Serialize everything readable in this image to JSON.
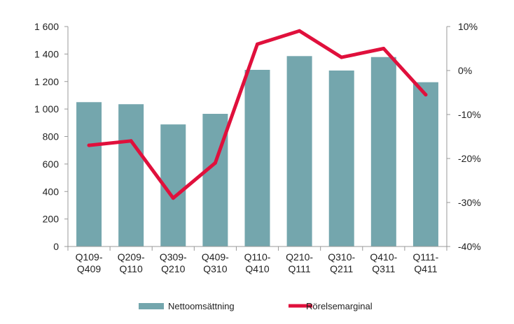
{
  "chart_data": {
    "type": "bar+line",
    "categories": [
      [
        "Q109-",
        "Q409"
      ],
      [
        "Q209-",
        "Q110"
      ],
      [
        "Q309-",
        "Q210"
      ],
      [
        "Q409-",
        "Q310"
      ],
      [
        "Q110-",
        "Q410"
      ],
      [
        "Q210-",
        "Q111"
      ],
      [
        "Q310-",
        "Q211"
      ],
      [
        "Q410-",
        "Q311"
      ],
      [
        "Q111-",
        "Q411"
      ]
    ],
    "series": [
      {
        "name": "Nettoomsättning",
        "type": "bar",
        "axis": "left",
        "color": "#74a6ad",
        "values": [
          1050,
          1035,
          888,
          965,
          1285,
          1385,
          1280,
          1378,
          1195
        ]
      },
      {
        "name": "Rörelsemarginal",
        "type": "line",
        "axis": "right",
        "color": "#e0103c",
        "values": [
          -17,
          -16,
          -29,
          -21,
          6,
          9,
          3,
          5,
          -5.5
        ]
      }
    ],
    "y_left": {
      "ylim": [
        0,
        1600
      ],
      "ticks": [
        0,
        200,
        400,
        600,
        800,
        1000,
        1200,
        1400,
        1600
      ],
      "tick_labels": [
        "0",
        "200",
        "400",
        "600",
        "800",
        "1 000",
        "1 200",
        "1 400",
        "1 600"
      ]
    },
    "y_right": {
      "ylim": [
        -40,
        10
      ],
      "ticks": [
        -40,
        -30,
        -20,
        -10,
        0,
        10
      ],
      "tick_labels": [
        "-40%",
        "-30%",
        "-20%",
        "-10%",
        "0%",
        "10%"
      ]
    },
    "grid": false,
    "legend": {
      "placement": "bottom-center"
    }
  }
}
